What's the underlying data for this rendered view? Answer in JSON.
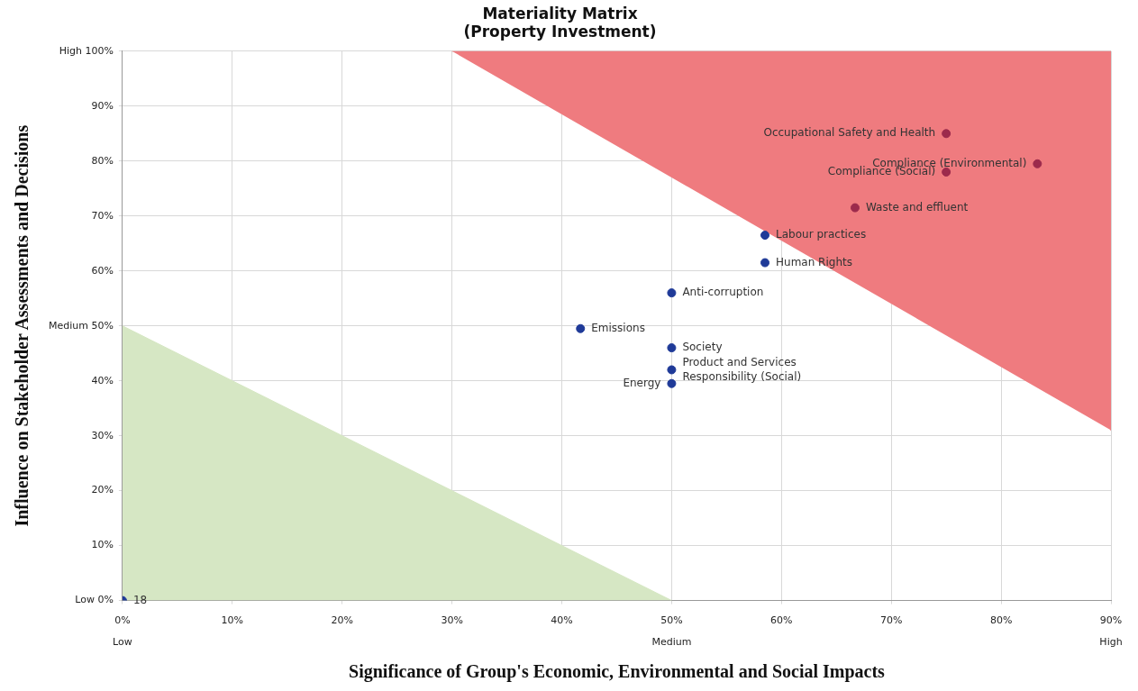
{
  "chart_data": {
    "type": "scatter",
    "title": "Materiality Matrix",
    "subtitle": "(Property Investment)",
    "xlabel": "Significance of Group's Economic, Environmental and Social Impacts",
    "ylabel": "Influence on Stakeholder Assessments and Decisions",
    "xlim": [
      0,
      90
    ],
    "ylim": [
      0,
      100
    ],
    "xticks": [
      {
        "value": 0,
        "label": "0%\nLow"
      },
      {
        "value": 10,
        "label": "10%"
      },
      {
        "value": 20,
        "label": "20%"
      },
      {
        "value": 30,
        "label": "30%"
      },
      {
        "value": 40,
        "label": "40%"
      },
      {
        "value": 50,
        "label": "50%\nMedium"
      },
      {
        "value": 60,
        "label": "60%"
      },
      {
        "value": 70,
        "label": "70%"
      },
      {
        "value": 80,
        "label": "80%"
      },
      {
        "value": 90,
        "label": "90%\nHigh"
      }
    ],
    "yticks": [
      {
        "value": 0,
        "label": "Low 0%"
      },
      {
        "value": 10,
        "label": "10%"
      },
      {
        "value": 20,
        "label": "20%"
      },
      {
        "value": 30,
        "label": "30%"
      },
      {
        "value": 40,
        "label": "40%"
      },
      {
        "value": 50,
        "label": "Medium 50%"
      },
      {
        "value": 60,
        "label": "60%"
      },
      {
        "value": 70,
        "label": "70%"
      },
      {
        "value": 80,
        "label": "80%"
      },
      {
        "value": 90,
        "label": "90%"
      },
      {
        "value": 100,
        "label": "High 100%"
      }
    ],
    "grid": true,
    "legend": false,
    "marker": "circle",
    "series": [
      {
        "type": "area",
        "marker": "none",
        "color": "#ef7b7f",
        "x": [
          30,
          90,
          90
        ],
        "values": [
          100,
          100,
          31
        ]
      },
      {
        "type": "area",
        "marker": "none",
        "color": "#d6e7c4",
        "x": [
          0,
          0,
          50
        ],
        "values": [
          0,
          50,
          0
        ]
      },
      {
        "color": "#1f3a98",
        "x": [
          58.5,
          58.5,
          50,
          41.7,
          50,
          50,
          50,
          0
        ],
        "values": [
          66.5,
          61.5,
          56,
          49.5,
          46,
          42,
          39.5,
          0
        ]
      },
      {
        "color": "#9c2a4c",
        "x": [
          75,
          83.3,
          75,
          66.7
        ],
        "values": [
          85,
          79.5,
          78,
          71.5
        ]
      }
    ],
    "annotations": [
      {
        "text": "Labour practices",
        "x": 58.5,
        "y": 66.5
      },
      {
        "text": "Human Rights",
        "x": 58.5,
        "y": 61.5
      },
      {
        "text": "Anti-corruption",
        "x": 50,
        "y": 56
      },
      {
        "text": "Emissions",
        "x": 41.7,
        "y": 49.5
      },
      {
        "text": "Society",
        "x": 50,
        "y": 46
      },
      {
        "text": "Product and Services\nResponsibility (Social)",
        "x": 50,
        "y": 42
      },
      {
        "text": "Energy",
        "x": 50,
        "y": 39.5
      },
      {
        "text": "Occupational Safety and Health",
        "x": 75,
        "y": 85
      },
      {
        "text": "Compliance (Environmental)",
        "x": 83.3,
        "y": 79.5
      },
      {
        "text": "Compliance (Social)",
        "x": 75,
        "y": 78
      },
      {
        "text": "Waste and effluent",
        "x": 66.7,
        "y": 71.5
      },
      {
        "text": "18",
        "x": 0,
        "y": 0
      }
    ]
  }
}
